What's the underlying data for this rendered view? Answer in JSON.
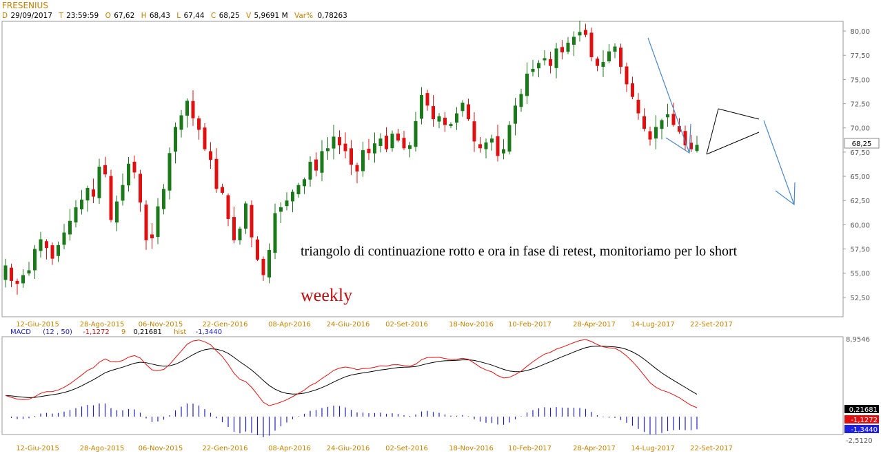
{
  "header": {
    "symbol": "FRESENIUS",
    "date_key": "D",
    "date": "29/09/2017",
    "time_key": "T",
    "time": "23:59:59",
    "open_key": "O",
    "open": "67,62",
    "high_key": "H",
    "high": "68,43",
    "low_key": "L",
    "low": "67,44",
    "close_key": "C",
    "close": "68,25",
    "volume_key": "V",
    "volume": "5,9691 M",
    "varpct_key": "Var%",
    "varpct": "0,78263"
  },
  "macd_header": {
    "name": "MACD",
    "params": "(12 , 50)",
    "macd": "-1,1272",
    "signal_key": "9",
    "signal": "0,21681",
    "hist_key": "hist",
    "hist": "-1,3440"
  },
  "annotations": {
    "comment": "triangolo di continuazione rotto e ora in fase di retest, monitoriamo per lo short",
    "timeframe": "weekly"
  },
  "last_price_label": "68,25",
  "macd_scale": {
    "top": "8,9546",
    "bottom": "-2,5120"
  },
  "macd_labels": {
    "signal": "0,21681",
    "macd": "-1,1272",
    "hist": "-1,3440"
  },
  "colors": {
    "up": "#1a7a1a",
    "down": "#e01010",
    "macd_line": "#000000",
    "signal_line": "#e01010",
    "histogram": "#2020c0",
    "arrows": "#4a86c8",
    "axis_labels": "#c08000"
  },
  "chart_data": {
    "type": "candlestick",
    "price_axis": {
      "ylim": [
        50.5,
        81.0
      ],
      "ticks": [
        "80,00",
        "77,50",
        "75,00",
        "72,50",
        "70,00",
        "67,50",
        "65,00",
        "62,50",
        "60,00",
        "57,50",
        "55,00",
        "52,50"
      ]
    },
    "x_tick_labels": [
      "12-Giu-2015",
      "28-Ago-2015",
      "06-Nov-2015",
      "22-Gen-2016",
      "08-Apr-2016",
      "24-Giu-2016",
      "02-Set-2016",
      "18-Nov-2016",
      "10-Feb-2017",
      "28-Apr-2017",
      "14-Lug-2017",
      "22-Set-2017"
    ],
    "x_tick_index": [
      5,
      16,
      26,
      37,
      48,
      58,
      68,
      79,
      89,
      100,
      110,
      120
    ],
    "close": [
      55.8,
      54.2,
      53.9,
      54.8,
      55.3,
      57.5,
      58.5,
      57.6,
      56.5,
      57.9,
      59.2,
      60.4,
      61.8,
      62.6,
      63.8,
      62.9,
      66.0,
      65.2,
      60.5,
      62.4,
      64.1,
      66.3,
      65.4,
      62.3,
      58.4,
      58.6,
      61.9,
      63.7,
      67.4,
      70.1,
      71.3,
      72.8,
      71.0,
      69.8,
      67.8,
      66.7,
      63.7,
      63.3,
      60.6,
      58.4,
      59.6,
      62.2,
      58.7,
      56.4,
      54.8,
      57.4,
      61.2,
      61.8,
      62.5,
      63.4,
      64.1,
      64.7,
      66.5,
      65.6,
      67.6,
      67.9,
      69.1,
      68.2,
      67.6,
      66.2,
      65.5,
      67.7,
      67.4,
      68.4,
      68.9,
      67.8,
      69.4,
      68.7,
      67.9,
      68.2,
      70.7,
      73.4,
      72.3,
      70.9,
      71.2,
      70.3,
      70.4,
      71.5,
      72.6,
      70.9,
      68.6,
      67.9,
      68.5,
      68.9,
      67.1,
      67.8,
      70.3,
      72.3,
      73.5,
      75.6,
      76.1,
      76.7,
      77.2,
      76.4,
      78.2,
      77.8,
      78.8,
      79.4,
      79.9,
      79.6,
      77.3,
      76.4,
      76.8,
      77.9,
      78.4,
      76.3,
      74.5,
      73.2,
      71.5,
      69.9,
      68.8,
      70.1,
      70.8,
      71.4,
      70.3,
      69.6,
      68.2,
      67.8,
      68.25
    ]
  }
}
